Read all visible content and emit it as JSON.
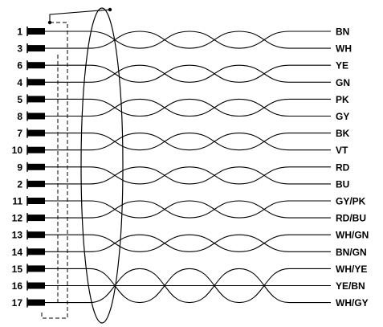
{
  "connector": {
    "pins": [
      {
        "pin": "1",
        "color": "BN"
      },
      {
        "pin": "3",
        "color": "WH"
      },
      {
        "pin": "6",
        "color": "YE"
      },
      {
        "pin": "4",
        "color": "GN"
      },
      {
        "pin": "5",
        "color": "PK"
      },
      {
        "pin": "8",
        "color": "GY"
      },
      {
        "pin": "7",
        "color": "BK"
      },
      {
        "pin": "10",
        "color": "VT"
      },
      {
        "pin": "9",
        "color": "RD"
      },
      {
        "pin": "2",
        "color": "BU"
      },
      {
        "pin": "11",
        "color": "GY/PK"
      },
      {
        "pin": "12",
        "color": "RD/BU"
      },
      {
        "pin": "13",
        "color": "WH/GN"
      },
      {
        "pin": "14",
        "color": "BN/GN"
      },
      {
        "pin": "15",
        "color": "WH/YE"
      },
      {
        "pin": "16",
        "color": "YE/BN"
      },
      {
        "pin": "17",
        "color": "WH/GY"
      }
    ]
  },
  "colors": {
    "line": "#000000",
    "background": "#ffffff"
  }
}
